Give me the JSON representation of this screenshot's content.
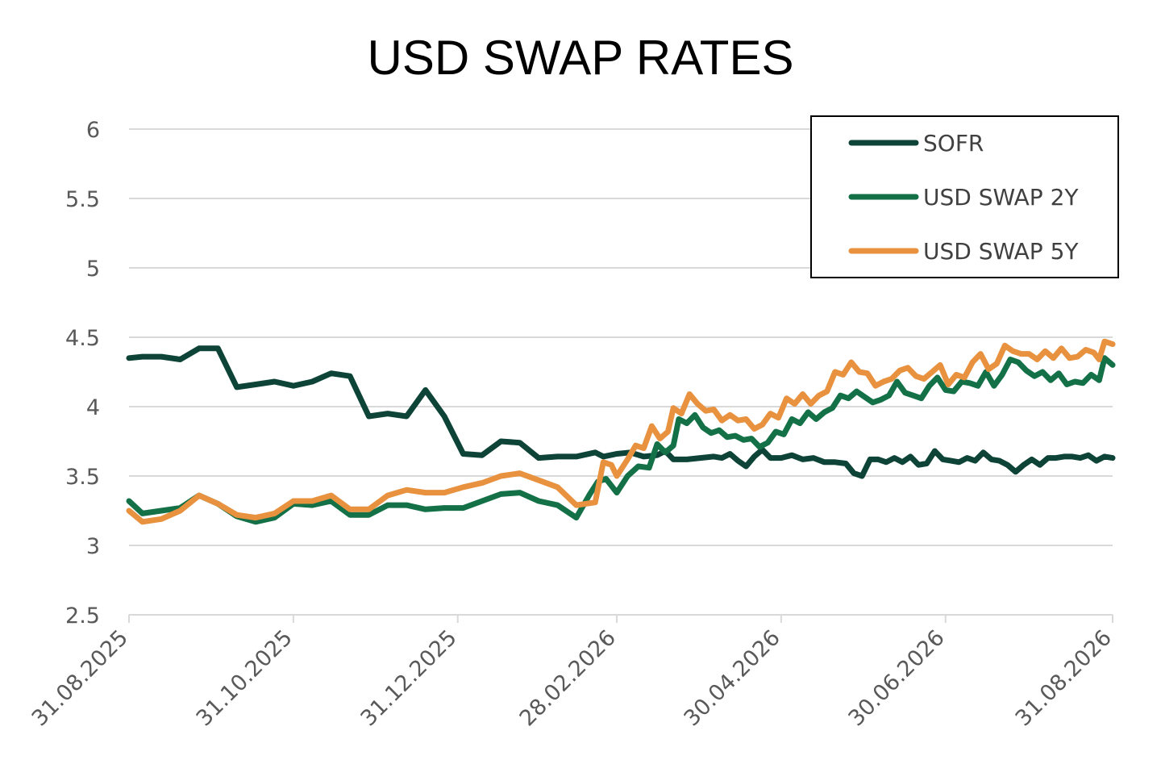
{
  "chart_data": {
    "type": "line",
    "title": "USD SWAP RATES",
    "xlabel": "",
    "ylabel": "",
    "ylim": [
      2.5,
      6
    ],
    "yticks": [
      "2.5",
      "3",
      "3.5",
      "4",
      "4.5",
      "5",
      "5.5",
      "6"
    ],
    "xticks": [
      "31.08.2025",
      "31.10.2025",
      "31.12.2025",
      "28.02.2026",
      "30.04.2026",
      "30.06.2026",
      "31.08.2026"
    ],
    "xrange": [
      "2025-08-31",
      "2026-08-31"
    ],
    "grid": "horizontal",
    "legend": "top-right",
    "series": [
      {
        "name": "SOFR",
        "color": "#0e4438",
        "points": [
          [
            "2025-08-31",
            4.35
          ],
          [
            "2025-09-05",
            4.36
          ],
          [
            "2025-09-12",
            4.36
          ],
          [
            "2025-09-19",
            4.34
          ],
          [
            "2025-09-26",
            4.42
          ],
          [
            "2025-10-03",
            4.42
          ],
          [
            "2025-10-10",
            4.14
          ],
          [
            "2025-10-17",
            4.16
          ],
          [
            "2025-10-24",
            4.18
          ],
          [
            "2025-10-31",
            4.15
          ],
          [
            "2025-11-07",
            4.18
          ],
          [
            "2025-11-14",
            4.24
          ],
          [
            "2025-11-21",
            4.22
          ],
          [
            "2025-11-28",
            3.93
          ],
          [
            "2025-12-05",
            3.95
          ],
          [
            "2025-12-12",
            3.93
          ],
          [
            "2025-12-19",
            4.12
          ],
          [
            "2025-12-26",
            3.93
          ],
          [
            "2026-01-02",
            3.66
          ],
          [
            "2026-01-09",
            3.65
          ],
          [
            "2026-01-16",
            3.75
          ],
          [
            "2026-01-23",
            3.74
          ],
          [
            "2026-01-30",
            3.63
          ],
          [
            "2026-02-06",
            3.64
          ],
          [
            "2026-02-13",
            3.64
          ],
          [
            "2026-02-20",
            3.67
          ],
          [
            "2026-02-23",
            3.64
          ],
          [
            "2026-02-28",
            3.66
          ],
          [
            "2026-03-05",
            3.67
          ],
          [
            "2026-03-10",
            3.64
          ],
          [
            "2026-03-15",
            3.65
          ],
          [
            "2026-03-18",
            3.68
          ],
          [
            "2026-03-21",
            3.62
          ],
          [
            "2026-03-26",
            3.62
          ],
          [
            "2026-03-31",
            3.63
          ],
          [
            "2026-04-05",
            3.64
          ],
          [
            "2026-04-08",
            3.63
          ],
          [
            "2026-04-11",
            3.66
          ],
          [
            "2026-04-14",
            3.61
          ],
          [
            "2026-04-17",
            3.57
          ],
          [
            "2026-04-20",
            3.64
          ],
          [
            "2026-04-23",
            3.69
          ],
          [
            "2026-04-26",
            3.63
          ],
          [
            "2026-04-30",
            3.63
          ],
          [
            "2026-05-04",
            3.65
          ],
          [
            "2026-05-08",
            3.62
          ],
          [
            "2026-05-12",
            3.63
          ],
          [
            "2026-05-16",
            3.6
          ],
          [
            "2026-05-20",
            3.6
          ],
          [
            "2026-05-24",
            3.59
          ],
          [
            "2026-05-27",
            3.52
          ],
          [
            "2026-05-30",
            3.5
          ],
          [
            "2026-06-02",
            3.62
          ],
          [
            "2026-06-05",
            3.62
          ],
          [
            "2026-06-08",
            3.6
          ],
          [
            "2026-06-11",
            3.63
          ],
          [
            "2026-06-14",
            3.6
          ],
          [
            "2026-06-17",
            3.64
          ],
          [
            "2026-06-20",
            3.58
          ],
          [
            "2026-06-23",
            3.59
          ],
          [
            "2026-06-26",
            3.68
          ],
          [
            "2026-06-29",
            3.62
          ],
          [
            "2026-07-02",
            3.61
          ],
          [
            "2026-07-05",
            3.6
          ],
          [
            "2026-07-08",
            3.63
          ],
          [
            "2026-07-11",
            3.61
          ],
          [
            "2026-07-14",
            3.67
          ],
          [
            "2026-07-17",
            3.62
          ],
          [
            "2026-07-20",
            3.61
          ],
          [
            "2026-07-23",
            3.58
          ],
          [
            "2026-07-26",
            3.53
          ],
          [
            "2026-07-29",
            3.58
          ],
          [
            "2026-08-01",
            3.62
          ],
          [
            "2026-08-04",
            3.58
          ],
          [
            "2026-08-07",
            3.63
          ],
          [
            "2026-08-10",
            3.63
          ],
          [
            "2026-08-13",
            3.64
          ],
          [
            "2026-08-16",
            3.64
          ],
          [
            "2026-08-19",
            3.63
          ],
          [
            "2026-08-22",
            3.65
          ],
          [
            "2026-08-25",
            3.61
          ],
          [
            "2026-08-28",
            3.64
          ],
          [
            "2026-08-31",
            3.63
          ]
        ]
      },
      {
        "name": "USD SWAP 2Y",
        "color": "#137047",
        "points": [
          [
            "2025-08-31",
            3.32
          ],
          [
            "2025-09-05",
            3.23
          ],
          [
            "2025-09-12",
            3.25
          ],
          [
            "2025-09-19",
            3.27
          ],
          [
            "2025-09-26",
            3.36
          ],
          [
            "2025-10-03",
            3.3
          ],
          [
            "2025-10-10",
            3.21
          ],
          [
            "2025-10-17",
            3.17
          ],
          [
            "2025-10-24",
            3.2
          ],
          [
            "2025-10-31",
            3.3
          ],
          [
            "2025-11-07",
            3.29
          ],
          [
            "2025-11-14",
            3.32
          ],
          [
            "2025-11-21",
            3.22
          ],
          [
            "2025-11-28",
            3.22
          ],
          [
            "2025-12-05",
            3.29
          ],
          [
            "2025-12-12",
            3.29
          ],
          [
            "2025-12-19",
            3.26
          ],
          [
            "2025-12-26",
            3.27
          ],
          [
            "2026-01-02",
            3.27
          ],
          [
            "2026-01-09",
            3.32
          ],
          [
            "2026-01-16",
            3.37
          ],
          [
            "2026-01-23",
            3.38
          ],
          [
            "2026-01-30",
            3.32
          ],
          [
            "2026-02-06",
            3.29
          ],
          [
            "2026-02-13",
            3.2
          ],
          [
            "2026-02-18",
            3.37
          ],
          [
            "2026-02-21",
            3.46
          ],
          [
            "2026-02-24",
            3.48
          ],
          [
            "2026-02-28",
            3.38
          ],
          [
            "2026-03-04",
            3.5
          ],
          [
            "2026-03-08",
            3.57
          ],
          [
            "2026-03-12",
            3.56
          ],
          [
            "2026-03-15",
            3.73
          ],
          [
            "2026-03-18",
            3.67
          ],
          [
            "2026-03-21",
            3.72
          ],
          [
            "2026-03-23",
            3.91
          ],
          [
            "2026-03-26",
            3.88
          ],
          [
            "2026-03-29",
            3.94
          ],
          [
            "2026-04-01",
            3.85
          ],
          [
            "2026-04-04",
            3.81
          ],
          [
            "2026-04-07",
            3.83
          ],
          [
            "2026-04-10",
            3.78
          ],
          [
            "2026-04-13",
            3.79
          ],
          [
            "2026-04-16",
            3.76
          ],
          [
            "2026-04-19",
            3.77
          ],
          [
            "2026-04-22",
            3.71
          ],
          [
            "2026-04-25",
            3.74
          ],
          [
            "2026-04-28",
            3.82
          ],
          [
            "2026-05-01",
            3.8
          ],
          [
            "2026-05-04",
            3.91
          ],
          [
            "2026-05-07",
            3.88
          ],
          [
            "2026-05-10",
            3.96
          ],
          [
            "2026-05-13",
            3.91
          ],
          [
            "2026-05-16",
            3.96
          ],
          [
            "2026-05-19",
            3.99
          ],
          [
            "2026-05-22",
            4.08
          ],
          [
            "2026-05-25",
            4.06
          ],
          [
            "2026-05-28",
            4.11
          ],
          [
            "2026-05-31",
            4.07
          ],
          [
            "2026-06-03",
            4.03
          ],
          [
            "2026-06-06",
            4.05
          ],
          [
            "2026-06-09",
            4.08
          ],
          [
            "2026-06-12",
            4.18
          ],
          [
            "2026-06-15",
            4.1
          ],
          [
            "2026-06-18",
            4.08
          ],
          [
            "2026-06-21",
            4.06
          ],
          [
            "2026-06-24",
            4.15
          ],
          [
            "2026-06-27",
            4.21
          ],
          [
            "2026-06-30",
            4.12
          ],
          [
            "2026-07-03",
            4.11
          ],
          [
            "2026-07-06",
            4.18
          ],
          [
            "2026-07-09",
            4.17
          ],
          [
            "2026-07-12",
            4.15
          ],
          [
            "2026-07-15",
            4.25
          ],
          [
            "2026-07-18",
            4.15
          ],
          [
            "2026-07-21",
            4.23
          ],
          [
            "2026-07-24",
            4.34
          ],
          [
            "2026-07-27",
            4.32
          ],
          [
            "2026-07-30",
            4.26
          ],
          [
            "2026-08-02",
            4.22
          ],
          [
            "2026-08-05",
            4.25
          ],
          [
            "2026-08-08",
            4.19
          ],
          [
            "2026-08-11",
            4.24
          ],
          [
            "2026-08-14",
            4.16
          ],
          [
            "2026-08-17",
            4.18
          ],
          [
            "2026-08-20",
            4.17
          ],
          [
            "2026-08-23",
            4.23
          ],
          [
            "2026-08-26",
            4.19
          ],
          [
            "2026-08-28",
            4.35
          ],
          [
            "2026-08-31",
            4.3
          ]
        ]
      },
      {
        "name": "USD SWAP 5Y",
        "color": "#e8913f",
        "points": [
          [
            "2025-08-31",
            3.25
          ],
          [
            "2025-09-05",
            3.17
          ],
          [
            "2025-09-12",
            3.19
          ],
          [
            "2025-09-19",
            3.25
          ],
          [
            "2025-09-26",
            3.36
          ],
          [
            "2025-10-03",
            3.3
          ],
          [
            "2025-10-10",
            3.22
          ],
          [
            "2025-10-17",
            3.2
          ],
          [
            "2025-10-24",
            3.23
          ],
          [
            "2025-10-31",
            3.32
          ],
          [
            "2025-11-07",
            3.32
          ],
          [
            "2025-11-14",
            3.36
          ],
          [
            "2025-11-21",
            3.26
          ],
          [
            "2025-11-28",
            3.26
          ],
          [
            "2025-12-05",
            3.36
          ],
          [
            "2025-12-12",
            3.4
          ],
          [
            "2025-12-19",
            3.38
          ],
          [
            "2025-12-26",
            3.38
          ],
          [
            "2026-01-02",
            3.42
          ],
          [
            "2026-01-09",
            3.45
          ],
          [
            "2026-01-16",
            3.5
          ],
          [
            "2026-01-23",
            3.52
          ],
          [
            "2026-01-30",
            3.47
          ],
          [
            "2026-02-06",
            3.42
          ],
          [
            "2026-02-13",
            3.29
          ],
          [
            "2026-02-20",
            3.31
          ],
          [
            "2026-02-23",
            3.6
          ],
          [
            "2026-02-26",
            3.58
          ],
          [
            "2026-02-28",
            3.5
          ],
          [
            "2026-03-04",
            3.62
          ],
          [
            "2026-03-07",
            3.72
          ],
          [
            "2026-03-10",
            3.7
          ],
          [
            "2026-03-13",
            3.86
          ],
          [
            "2026-03-16",
            3.77
          ],
          [
            "2026-03-19",
            3.82
          ],
          [
            "2026-03-21",
            3.99
          ],
          [
            "2026-03-24",
            3.95
          ],
          [
            "2026-03-27",
            4.09
          ],
          [
            "2026-03-30",
            4.02
          ],
          [
            "2026-04-02",
            3.97
          ],
          [
            "2026-04-05",
            3.98
          ],
          [
            "2026-04-08",
            3.9
          ],
          [
            "2026-04-11",
            3.94
          ],
          [
            "2026-04-14",
            3.9
          ],
          [
            "2026-04-17",
            3.91
          ],
          [
            "2026-04-20",
            3.84
          ],
          [
            "2026-04-23",
            3.87
          ],
          [
            "2026-04-26",
            3.95
          ],
          [
            "2026-04-29",
            3.92
          ],
          [
            "2026-05-02",
            4.06
          ],
          [
            "2026-05-05",
            4.02
          ],
          [
            "2026-05-08",
            4.09
          ],
          [
            "2026-05-11",
            4.02
          ],
          [
            "2026-05-14",
            4.08
          ],
          [
            "2026-05-17",
            4.11
          ],
          [
            "2026-05-20",
            4.25
          ],
          [
            "2026-05-23",
            4.23
          ],
          [
            "2026-05-26",
            4.32
          ],
          [
            "2026-05-29",
            4.25
          ],
          [
            "2026-06-01",
            4.24
          ],
          [
            "2026-06-04",
            4.15
          ],
          [
            "2026-06-07",
            4.18
          ],
          [
            "2026-06-10",
            4.2
          ],
          [
            "2026-06-13",
            4.26
          ],
          [
            "2026-06-16",
            4.28
          ],
          [
            "2026-06-19",
            4.22
          ],
          [
            "2026-06-22",
            4.2
          ],
          [
            "2026-06-25",
            4.25
          ],
          [
            "2026-06-28",
            4.3
          ],
          [
            "2026-07-01",
            4.16
          ],
          [
            "2026-07-04",
            4.23
          ],
          [
            "2026-07-07",
            4.21
          ],
          [
            "2026-07-10",
            4.32
          ],
          [
            "2026-07-13",
            4.38
          ],
          [
            "2026-07-16",
            4.27
          ],
          [
            "2026-07-19",
            4.31
          ],
          [
            "2026-07-22",
            4.44
          ],
          [
            "2026-07-25",
            4.4
          ],
          [
            "2026-07-28",
            4.38
          ],
          [
            "2026-07-31",
            4.38
          ],
          [
            "2026-08-03",
            4.34
          ],
          [
            "2026-08-06",
            4.4
          ],
          [
            "2026-08-09",
            4.35
          ],
          [
            "2026-08-12",
            4.42
          ],
          [
            "2026-08-15",
            4.35
          ],
          [
            "2026-08-18",
            4.36
          ],
          [
            "2026-08-21",
            4.41
          ],
          [
            "2026-08-24",
            4.39
          ],
          [
            "2026-08-26",
            4.34
          ],
          [
            "2026-08-28",
            4.47
          ],
          [
            "2026-08-31",
            4.45
          ]
        ]
      }
    ]
  }
}
